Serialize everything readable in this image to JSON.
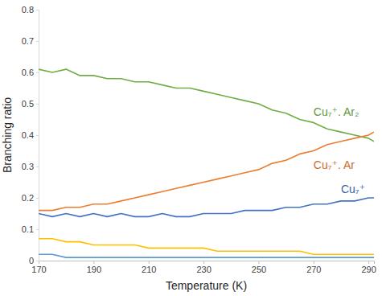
{
  "chart_data": {
    "type": "line",
    "x_label": "Temperature (K)",
    "y_label": "Branching ratio",
    "x": [
      170,
      175,
      180,
      185,
      190,
      195,
      200,
      205,
      210,
      215,
      220,
      225,
      230,
      235,
      240,
      245,
      250,
      255,
      260,
      265,
      270,
      275,
      280,
      285,
      290,
      292
    ],
    "xlim": [
      170,
      292
    ],
    "xticks": [
      170,
      190,
      210,
      230,
      250,
      270,
      290
    ],
    "ylim": [
      0,
      0.8
    ],
    "yticks": [
      0,
      0.1,
      0.2,
      0.3,
      0.4,
      0.5,
      0.6,
      0.7,
      0.8
    ],
    "grid": false,
    "series": [
      {
        "name": "Cu₇⁺. Ar₂",
        "color": "#70ad47",
        "values": [
          0.61,
          0.6,
          0.61,
          0.59,
          0.59,
          0.58,
          0.58,
          0.57,
          0.57,
          0.56,
          0.55,
          0.55,
          0.54,
          0.53,
          0.52,
          0.51,
          0.5,
          0.48,
          0.47,
          0.45,
          0.44,
          0.42,
          0.41,
          0.4,
          0.39,
          0.38
        ]
      },
      {
        "name": "Cu₇⁺. Ar",
        "color": "#ed7d31",
        "values": [
          0.16,
          0.16,
          0.17,
          0.17,
          0.18,
          0.18,
          0.19,
          0.2,
          0.21,
          0.22,
          0.23,
          0.24,
          0.25,
          0.26,
          0.27,
          0.28,
          0.29,
          0.31,
          0.32,
          0.34,
          0.35,
          0.37,
          0.38,
          0.39,
          0.4,
          0.41
        ]
      },
      {
        "name": "Cu₇⁺",
        "color": "#4472c4",
        "values": [
          0.15,
          0.14,
          0.15,
          0.14,
          0.15,
          0.14,
          0.15,
          0.14,
          0.14,
          0.15,
          0.14,
          0.14,
          0.15,
          0.15,
          0.15,
          0.16,
          0.16,
          0.16,
          0.17,
          0.17,
          0.18,
          0.18,
          0.19,
          0.19,
          0.2,
          0.2
        ]
      },
      {
        "color": "#ffc000",
        "values": [
          0.07,
          0.07,
          0.06,
          0.06,
          0.05,
          0.05,
          0.05,
          0.05,
          0.04,
          0.04,
          0.04,
          0.04,
          0.04,
          0.03,
          0.03,
          0.03,
          0.03,
          0.03,
          0.03,
          0.03,
          0.02,
          0.02,
          0.02,
          0.02,
          0.02,
          0.02
        ]
      },
      {
        "color": "#5b9bd5",
        "values": [
          0.02,
          0.02,
          0.01,
          0.01,
          0.01,
          0.01,
          0.01,
          0.01,
          0.01,
          0.01,
          0.01,
          0.01,
          0.01,
          0.01,
          0.01,
          0.01,
          0.01,
          0.01,
          0.01,
          0.01,
          0.01,
          0.01,
          0.01,
          0.01,
          0.01,
          0.01
        ]
      }
    ]
  }
}
